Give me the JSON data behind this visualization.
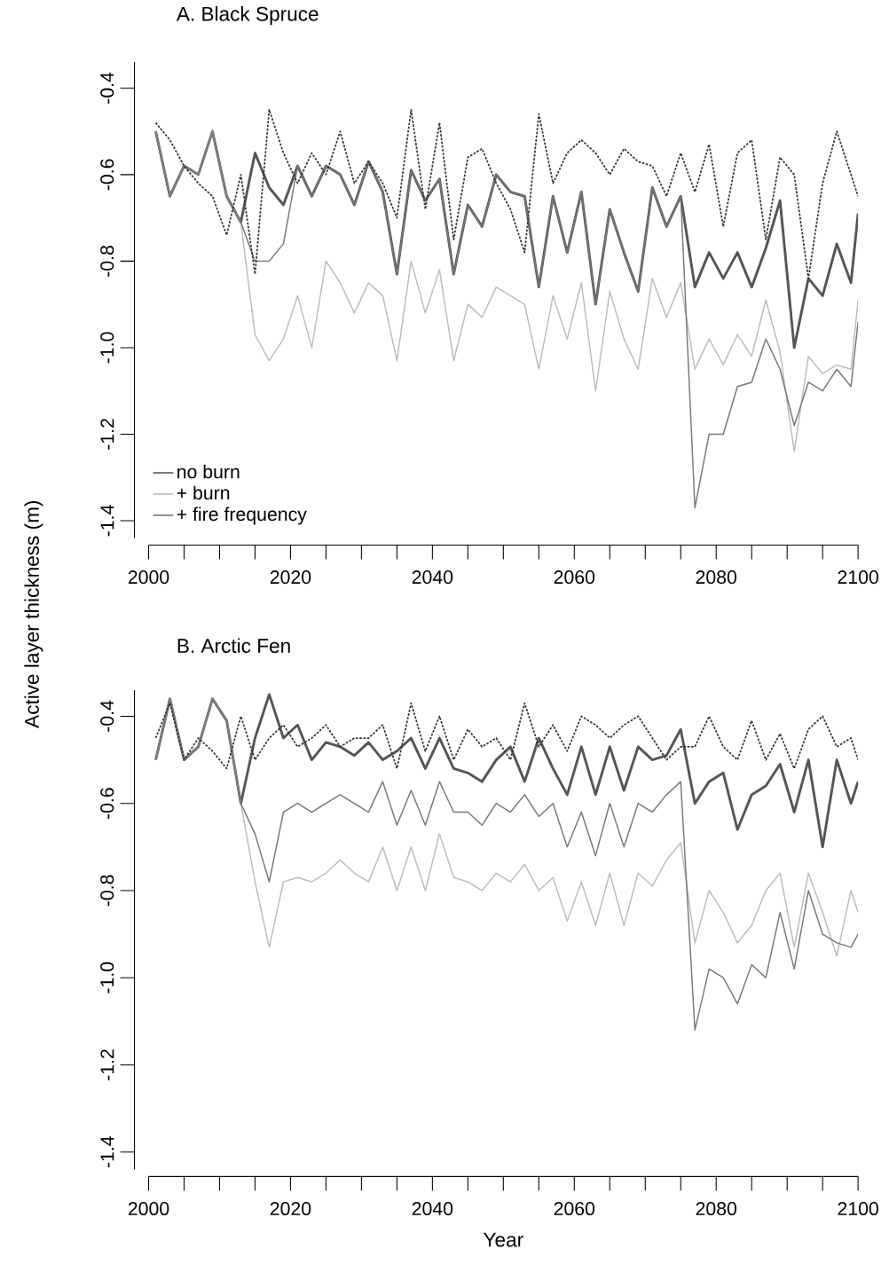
{
  "chart_data": [
    {
      "type": "line",
      "title": "A. Black Spruce",
      "ylabel": "Active layer thickness (m)",
      "x": [
        2001,
        2003,
        2005,
        2007,
        2009,
        2011,
        2013,
        2015,
        2017,
        2019,
        2021,
        2023,
        2025,
        2027,
        2029,
        2031,
        2033,
        2035,
        2037,
        2039,
        2041,
        2043,
        2045,
        2047,
        2049,
        2051,
        2053,
        2055,
        2057,
        2059,
        2061,
        2063,
        2065,
        2067,
        2069,
        2071,
        2073,
        2075,
        2077,
        2079,
        2081,
        2083,
        2085,
        2087,
        2089,
        2091,
        2093,
        2095,
        2097,
        2099,
        2100
      ],
      "series": [
        {
          "name": "no burn",
          "color": "#555555",
          "values": [
            -0.5,
            -0.65,
            -0.58,
            -0.6,
            -0.5,
            -0.65,
            -0.71,
            -0.55,
            -0.63,
            -0.67,
            -0.58,
            -0.65,
            -0.58,
            -0.6,
            -0.67,
            -0.57,
            -0.64,
            -0.83,
            -0.59,
            -0.66,
            -0.61,
            -0.83,
            -0.67,
            -0.72,
            -0.6,
            -0.64,
            -0.65,
            -0.86,
            -0.65,
            -0.78,
            -0.64,
            -0.9,
            -0.68,
            -0.78,
            -0.87,
            -0.63,
            -0.72,
            -0.65,
            -0.86,
            -0.78,
            -0.84,
            -0.78,
            -0.86,
            -0.77,
            -0.66,
            -1.0,
            -0.84,
            -0.88,
            -0.76,
            -0.85,
            -0.69
          ]
        },
        {
          "name": "+ burn",
          "color": "#bbbbbb",
          "values": [
            -0.5,
            -0.65,
            -0.58,
            -0.6,
            -0.5,
            -0.65,
            -0.71,
            -0.97,
            -1.03,
            -0.98,
            -0.88,
            -1.0,
            -0.8,
            -0.85,
            -0.92,
            -0.85,
            -0.88,
            -1.03,
            -0.8,
            -0.92,
            -0.82,
            -1.03,
            -0.9,
            -0.93,
            -0.86,
            -0.88,
            -0.9,
            -1.05,
            -0.88,
            -0.98,
            -0.85,
            -1.1,
            -0.87,
            -0.98,
            -1.05,
            -0.84,
            -0.93,
            -0.85,
            -1.05,
            -0.98,
            -1.04,
            -0.97,
            -1.02,
            -0.89,
            -1.01,
            -1.24,
            -1.02,
            -1.06,
            -1.04,
            -1.05,
            -0.89
          ]
        },
        {
          "name": "+ fire frequency",
          "color": "#777777",
          "values": [
            -0.5,
            -0.65,
            -0.58,
            -0.6,
            -0.5,
            -0.65,
            -0.71,
            -0.8,
            -0.8,
            -0.76,
            -0.58,
            -0.65,
            -0.58,
            -0.6,
            -0.67,
            -0.57,
            -0.64,
            -0.83,
            -0.59,
            -0.66,
            -0.61,
            -0.83,
            -0.67,
            -0.72,
            -0.6,
            -0.64,
            -0.65,
            -0.86,
            -0.65,
            -0.78,
            -0.64,
            -0.9,
            -0.68,
            -0.78,
            -0.87,
            -0.63,
            -0.72,
            -0.65,
            -1.37,
            -1.2,
            -1.2,
            -1.09,
            -1.08,
            -0.98,
            -1.05,
            -1.18,
            -1.08,
            -1.1,
            -1.05,
            -1.09,
            -0.94
          ]
        },
        {
          "color": "#333333",
          "line_style": "dotted",
          "values": [
            -0.48,
            -0.52,
            -0.58,
            -0.62,
            -0.65,
            -0.74,
            -0.6,
            -0.83,
            -0.45,
            -0.55,
            -0.62,
            -0.55,
            -0.6,
            -0.5,
            -0.62,
            -0.57,
            -0.62,
            -0.7,
            -0.45,
            -0.68,
            -0.48,
            -0.75,
            -0.56,
            -0.54,
            -0.62,
            -0.68,
            -0.78,
            -0.46,
            -0.62,
            -0.55,
            -0.52,
            -0.55,
            -0.6,
            -0.54,
            -0.57,
            -0.58,
            -0.65,
            -0.55,
            -0.64,
            -0.53,
            -0.72,
            -0.55,
            -0.52,
            -0.75,
            -0.56,
            -0.6,
            -0.84,
            -0.62,
            -0.5,
            -0.6,
            -0.65
          ]
        }
      ],
      "xlim": [
        2000,
        2100
      ],
      "ylim": [
        -1.44,
        -0.34
      ],
      "xticks": [
        2000,
        {
          "value": 2005,
          "label": null
        },
        {
          "value": 2010,
          "label": null
        },
        {
          "value": 2015,
          "label": null
        },
        2020,
        {
          "value": 2025,
          "label": null
        },
        {
          "value": 2030,
          "label": null
        },
        {
          "value": 2035,
          "label": null
        },
        2040,
        {
          "value": 2045,
          "label": null
        },
        {
          "value": 2050,
          "label": null
        },
        {
          "value": 2055,
          "label": null
        },
        2060,
        {
          "value": 2065,
          "label": null
        },
        {
          "value": 2070,
          "label": null
        },
        {
          "value": 2075,
          "label": null
        },
        2080,
        {
          "value": 2085,
          "label": null
        },
        {
          "value": 2090,
          "label": null
        },
        {
          "value": 2095,
          "label": null
        },
        2100
      ],
      "yticks": [
        -1.4,
        -1.2,
        {
          "value": -1.0,
          "label": "-1.0"
        },
        -0.8,
        -0.6,
        -0.4
      ],
      "legend": "bottom left"
    },
    {
      "type": "line",
      "title": "B. Arctic Fen",
      "xlabel": "Year",
      "x": [
        2001,
        2003,
        2005,
        2007,
        2009,
        2011,
        2013,
        2015,
        2017,
        2019,
        2021,
        2023,
        2025,
        2027,
        2029,
        2031,
        2033,
        2035,
        2037,
        2039,
        2041,
        2043,
        2045,
        2047,
        2049,
        2051,
        2053,
        2055,
        2057,
        2059,
        2061,
        2063,
        2065,
        2067,
        2069,
        2071,
        2073,
        2075,
        2077,
        2079,
        2081,
        2083,
        2085,
        2087,
        2089,
        2091,
        2093,
        2095,
        2097,
        2099,
        2100
      ],
      "series": [
        {
          "color": "#555555",
          "values": [
            -0.5,
            -0.36,
            -0.5,
            -0.47,
            -0.36,
            -0.41,
            -0.6,
            -0.45,
            -0.35,
            -0.45,
            -0.42,
            -0.5,
            -0.46,
            -0.47,
            -0.49,
            -0.46,
            -0.5,
            -0.48,
            -0.45,
            -0.52,
            -0.45,
            -0.52,
            -0.53,
            -0.55,
            -0.5,
            -0.47,
            -0.55,
            -0.45,
            -0.52,
            -0.58,
            -0.47,
            -0.58,
            -0.47,
            -0.57,
            -0.47,
            -0.5,
            -0.49,
            -0.43,
            -0.6,
            -0.55,
            -0.53,
            -0.66,
            -0.58,
            -0.56,
            -0.51,
            -0.62,
            -0.5,
            -0.7,
            -0.5,
            -0.6,
            -0.55
          ]
        },
        {
          "color": "#bbbbbb",
          "values": [
            -0.5,
            -0.36,
            -0.5,
            -0.47,
            -0.36,
            -0.41,
            -0.6,
            -0.78,
            -0.93,
            -0.78,
            -0.77,
            -0.78,
            -0.76,
            -0.73,
            -0.76,
            -0.78,
            -0.7,
            -0.8,
            -0.7,
            -0.8,
            -0.67,
            -0.77,
            -0.78,
            -0.8,
            -0.76,
            -0.78,
            -0.74,
            -0.8,
            -0.77,
            -0.87,
            -0.78,
            -0.88,
            -0.76,
            -0.88,
            -0.76,
            -0.79,
            -0.73,
            -0.69,
            -0.92,
            -0.8,
            -0.85,
            -0.92,
            -0.88,
            -0.8,
            -0.76,
            -0.93,
            -0.76,
            -0.85,
            -0.95,
            -0.8,
            -0.85
          ]
        },
        {
          "color": "#777777",
          "values": [
            -0.5,
            -0.36,
            -0.5,
            -0.47,
            -0.36,
            -0.41,
            -0.6,
            -0.67,
            -0.78,
            -0.62,
            -0.6,
            -0.62,
            -0.6,
            -0.58,
            -0.6,
            -0.62,
            -0.55,
            -0.65,
            -0.57,
            -0.65,
            -0.55,
            -0.62,
            -0.62,
            -0.65,
            -0.6,
            -0.62,
            -0.58,
            -0.63,
            -0.6,
            -0.7,
            -0.62,
            -0.72,
            -0.6,
            -0.7,
            -0.6,
            -0.62,
            -0.58,
            -0.55,
            -1.12,
            -0.98,
            -1.0,
            -1.06,
            -0.97,
            -1.0,
            -0.85,
            -0.98,
            -0.8,
            -0.9,
            -0.92,
            -0.93,
            -0.9
          ]
        },
        {
          "color": "#333333",
          "line_style": "dotted",
          "values": [
            -0.45,
            -0.37,
            -0.5,
            -0.45,
            -0.48,
            -0.52,
            -0.4,
            -0.5,
            -0.45,
            -0.42,
            -0.47,
            -0.45,
            -0.42,
            -0.47,
            -0.45,
            -0.45,
            -0.42,
            -0.52,
            -0.37,
            -0.48,
            -0.4,
            -0.5,
            -0.43,
            -0.47,
            -0.45,
            -0.5,
            -0.37,
            -0.47,
            -0.42,
            -0.48,
            -0.4,
            -0.42,
            -0.45,
            -0.42,
            -0.4,
            -0.45,
            -0.5,
            -0.47,
            -0.47,
            -0.4,
            -0.47,
            -0.5,
            -0.41,
            -0.5,
            -0.44,
            -0.52,
            -0.43,
            -0.4,
            -0.47,
            -0.45,
            -0.5
          ]
        }
      ],
      "xlim": [
        2000,
        2100
      ],
      "ylim": [
        -1.44,
        -0.34
      ],
      "xticks": [
        2000,
        {
          "value": 2005,
          "label": null
        },
        {
          "value": 2010,
          "label": null
        },
        {
          "value": 2015,
          "label": null
        },
        2020,
        {
          "value": 2025,
          "label": null
        },
        {
          "value": 2030,
          "label": null
        },
        {
          "value": 2035,
          "label": null
        },
        2040,
        {
          "value": 2045,
          "label": null
        },
        {
          "value": 2050,
          "label": null
        },
        {
          "value": 2055,
          "label": null
        },
        2060,
        {
          "value": 2065,
          "label": null
        },
        {
          "value": 2070,
          "label": null
        },
        {
          "value": 2075,
          "label": null
        },
        2080,
        {
          "value": 2085,
          "label": null
        },
        {
          "value": 2090,
          "label": null
        },
        {
          "value": 2095,
          "label": null
        },
        2100
      ],
      "yticks": [
        -1.4,
        -1.2,
        {
          "value": -1.0,
          "label": "-1.0"
        },
        -0.8,
        -0.6,
        -0.4
      ]
    }
  ]
}
